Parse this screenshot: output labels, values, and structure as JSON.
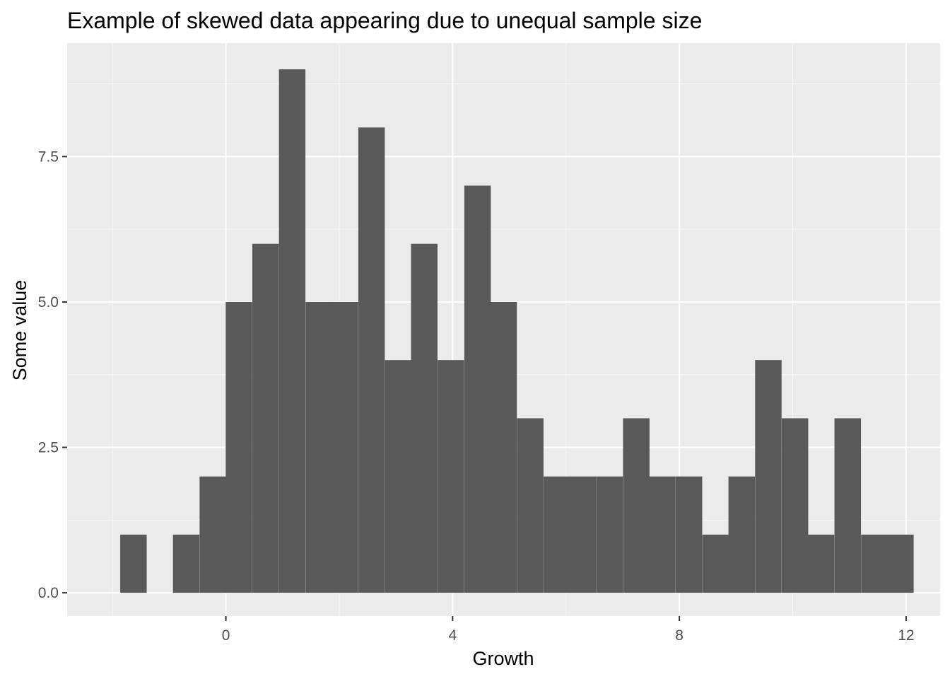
{
  "chart_data": {
    "type": "bar",
    "title": "Example of skewed data appearing due to unequal sample size",
    "xlabel": "Growth",
    "ylabel": "Some value",
    "xlim": [
      -2.8,
      12.6
    ],
    "ylim": [
      -0.4,
      9.45
    ],
    "x_ticks": [
      0,
      4,
      8,
      12
    ],
    "x_tick_labels": [
      "0",
      "4",
      "8",
      "12"
    ],
    "y_ticks": [
      0,
      2.5,
      5,
      7.5
    ],
    "y_tick_labels": [
      "0.0",
      "2.5",
      "5.0",
      "7.5"
    ],
    "grid": true,
    "bin_width": 0.467,
    "bins": [
      {
        "x": -1.63,
        "value": 1
      },
      {
        "x": -0.7,
        "value": 1
      },
      {
        "x": -0.23,
        "value": 2
      },
      {
        "x": 0.23,
        "value": 5
      },
      {
        "x": 0.7,
        "value": 6
      },
      {
        "x": 1.17,
        "value": 9
      },
      {
        "x": 1.64,
        "value": 5
      },
      {
        "x": 2.1,
        "value": 5
      },
      {
        "x": 2.57,
        "value": 8
      },
      {
        "x": 3.04,
        "value": 4
      },
      {
        "x": 3.5,
        "value": 6
      },
      {
        "x": 3.97,
        "value": 4
      },
      {
        "x": 4.44,
        "value": 7
      },
      {
        "x": 4.9,
        "value": 5
      },
      {
        "x": 5.37,
        "value": 3
      },
      {
        "x": 5.84,
        "value": 2
      },
      {
        "x": 6.3,
        "value": 2
      },
      {
        "x": 6.77,
        "value": 2
      },
      {
        "x": 7.24,
        "value": 3
      },
      {
        "x": 7.7,
        "value": 2
      },
      {
        "x": 8.17,
        "value": 2
      },
      {
        "x": 8.64,
        "value": 1
      },
      {
        "x": 9.1,
        "value": 2
      },
      {
        "x": 9.57,
        "value": 4
      },
      {
        "x": 10.04,
        "value": 3
      },
      {
        "x": 10.5,
        "value": 1
      },
      {
        "x": 10.97,
        "value": 3
      },
      {
        "x": 11.44,
        "value": 1
      },
      {
        "x": 11.9,
        "value": 1
      }
    ],
    "colors": {
      "panel_background": "#ebebeb",
      "grid_major": "#ffffff",
      "bar_fill": "#595959",
      "tick_text": "#4d4d4d",
      "tick_mark": "#333333"
    }
  }
}
